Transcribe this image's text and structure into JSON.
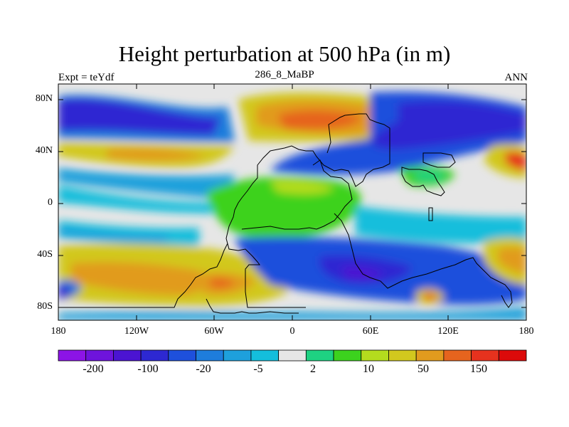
{
  "title": "Height perturbation at 500 hPa (in m)",
  "left_label": "Expt = teYdf",
  "center_label": "286_8_MaBP",
  "right_label": "ANN",
  "map": {
    "projection": "cylindrical equidistant",
    "lon_range": [
      -180,
      180
    ],
    "lat_range": [
      -90,
      90
    ],
    "lat_ticks": [
      "80N",
      "40N",
      "0",
      "40S",
      "80S"
    ],
    "lon_ticks": [
      "180",
      "120W",
      "60W",
      "0",
      "60E",
      "120E",
      "180"
    ]
  },
  "colorbar": {
    "colors": [
      "#8c14e6",
      "#6e14dc",
      "#4b14d2",
      "#2d28d2",
      "#1e50dc",
      "#1e7ddc",
      "#1ea0dc",
      "#14bedc",
      "#e6e6e6",
      "#1ed282",
      "#3cd21e",
      "#b4dc1e",
      "#d2c81e",
      "#e19b1e",
      "#e6641e",
      "#e6321e",
      "#dc0a0a"
    ],
    "labels": [
      "-200",
      "-100",
      "-20",
      "-5",
      "2",
      "10",
      "50",
      "150"
    ]
  }
}
